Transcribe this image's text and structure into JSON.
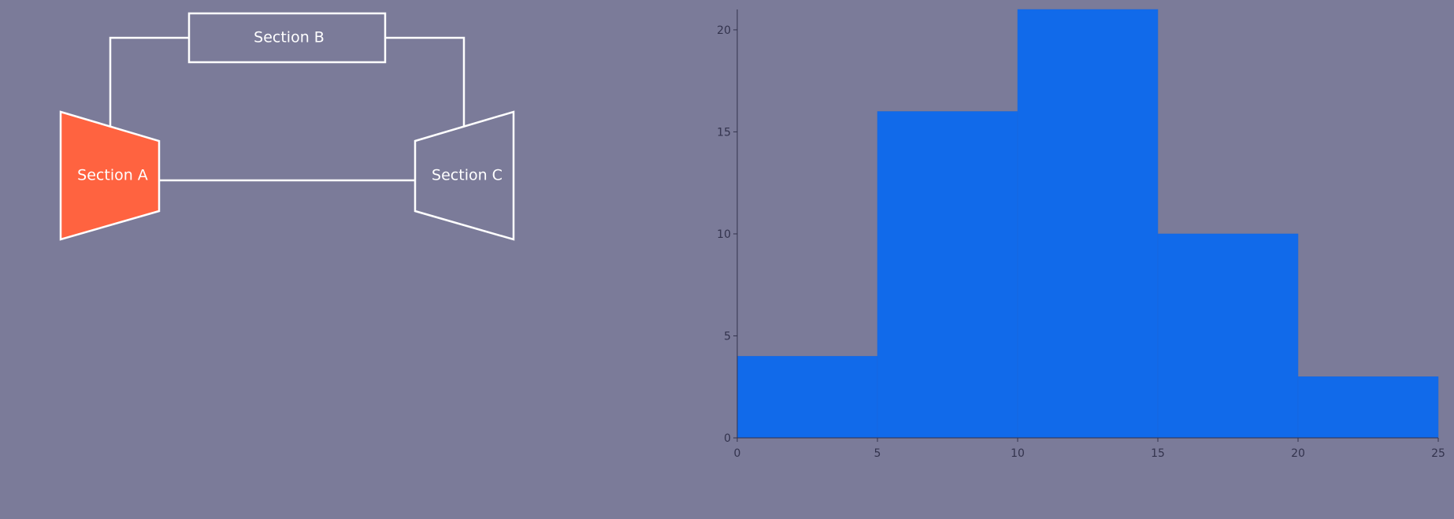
{
  "diagram": {
    "nodes": [
      {
        "id": "A",
        "label": "Section A",
        "shape": "trapezoid",
        "fill": "#ff6340",
        "active": true
      },
      {
        "id": "B",
        "label": "Section B",
        "shape": "rectangle",
        "fill": "none",
        "active": false
      },
      {
        "id": "C",
        "label": "Section C",
        "shape": "trapezoid",
        "fill": "none",
        "active": false
      }
    ],
    "edges": [
      {
        "from": "A",
        "to": "B"
      },
      {
        "from": "B",
        "to": "C"
      },
      {
        "from": "A",
        "to": "C"
      }
    ],
    "colors": {
      "background": "#7b7b99",
      "stroke": "#ffffff",
      "highlight": "#ff6340"
    }
  },
  "chart_data": {
    "type": "bar",
    "title": "",
    "xlabel": "",
    "ylabel": "",
    "bins": [
      {
        "x0": 0,
        "x1": 5,
        "value": 4
      },
      {
        "x0": 5,
        "x1": 10,
        "value": 16
      },
      {
        "x0": 10,
        "x1": 15,
        "value": 21
      },
      {
        "x0": 15,
        "x1": 20,
        "value": 10
      },
      {
        "x0": 20,
        "x1": 25,
        "value": 3
      }
    ],
    "xlim": [
      0,
      25
    ],
    "ylim": [
      0,
      21
    ],
    "x_ticks": [
      "0",
      "5",
      "10",
      "15",
      "20",
      "25"
    ],
    "y_ticks": [
      "0",
      "5",
      "10",
      "15",
      "20"
    ],
    "bar_color": "#116aea",
    "grid": false,
    "legend": "none"
  }
}
